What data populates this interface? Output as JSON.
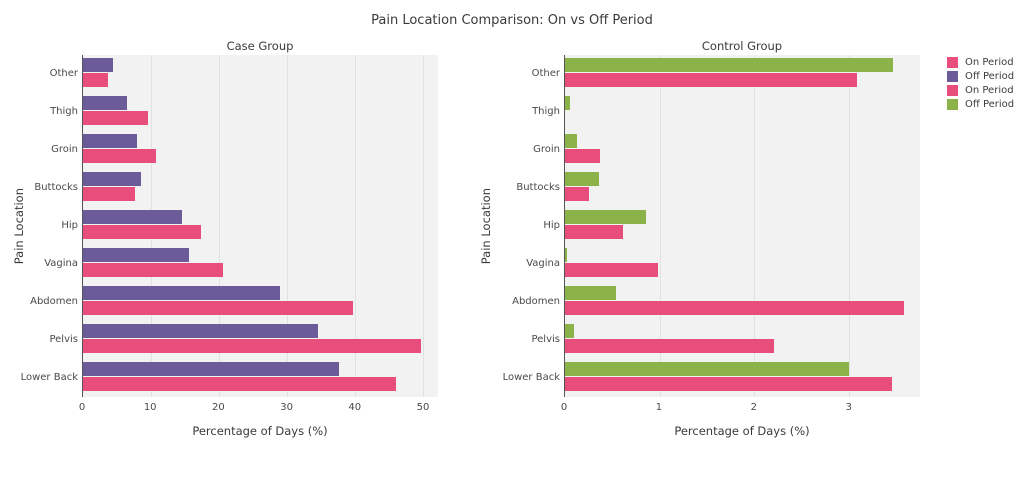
{
  "title": "Pain Location Comparison: On vs Off Period",
  "colors": {
    "on_period": "#e84e7c",
    "off_period_case": "#6c5b99",
    "off_period_control": "#8cb34a",
    "plot_background": "#f2f2f2",
    "gridline": "#e1e1e1",
    "axis_line": "#555555"
  },
  "legend": [
    {
      "label": "On Period",
      "color": "#e84e7c"
    },
    {
      "label": "Off Period",
      "color": "#6c5b99"
    },
    {
      "label": "On Period",
      "color": "#e84e7c"
    },
    {
      "label": "Off Period",
      "color": "#8cb34a"
    }
  ],
  "chart_data": [
    {
      "type": "bar",
      "orientation": "horizontal",
      "title": "Case Group",
      "categories": [
        "Other",
        "Thigh",
        "Groin",
        "Buttocks",
        "Hip",
        "Vagina",
        "Abdomen",
        "Pelvis",
        "Lower Back"
      ],
      "series": [
        {
          "name": "On Period",
          "color": "#e84e7c",
          "values": [
            3.7,
            9.6,
            10.7,
            7.7,
            17.3,
            20.6,
            39.7,
            49.7,
            46.0
          ]
        },
        {
          "name": "Off Period",
          "color": "#6c5b99",
          "values": [
            4.4,
            6.4,
            8.0,
            8.5,
            14.5,
            15.6,
            29.0,
            34.6,
            37.6
          ]
        }
      ],
      "xlabel": "Percentage of Days (%)",
      "ylabel": "Pain Location",
      "xticks": [
        0,
        10,
        20,
        30,
        40,
        50
      ],
      "xlim": [
        0,
        52.2
      ],
      "grid": true,
      "legend_position": "outside-right"
    },
    {
      "type": "bar",
      "orientation": "horizontal",
      "title": "Control Group",
      "categories": [
        "Other",
        "Thigh",
        "Groin",
        "Buttocks",
        "Hip",
        "Vagina",
        "Abdomen",
        "Pelvis",
        "Lower Back"
      ],
      "series": [
        {
          "name": "On Period",
          "color": "#e84e7c",
          "values": [
            3.08,
            0.0,
            0.37,
            0.25,
            0.61,
            0.98,
            3.58,
            2.21,
            3.45
          ]
        },
        {
          "name": "Off Period",
          "color": "#8cb34a",
          "values": [
            3.47,
            0.05,
            0.13,
            0.36,
            0.86,
            0.02,
            0.54,
            0.09,
            3.0
          ]
        }
      ],
      "xlabel": "Percentage of Days (%)",
      "ylabel": "Pain Location",
      "xticks": [
        0,
        1,
        2,
        3
      ],
      "xlim": [
        0,
        3.75
      ],
      "grid": true,
      "legend_position": "outside-right"
    }
  ]
}
